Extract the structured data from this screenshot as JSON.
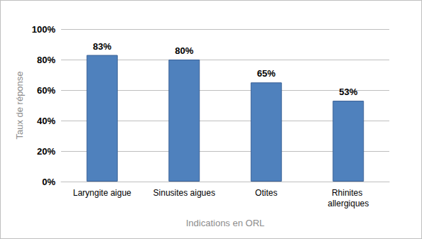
{
  "chart_data": {
    "type": "bar",
    "categories": [
      "Laryngite aigue",
      "Sinusites aigues",
      "Otites",
      "Rhinites allergiques"
    ],
    "values": [
      83,
      80,
      65,
      53
    ],
    "value_labels": [
      "83%",
      "80%",
      "65%",
      "53%"
    ],
    "data_labels": true,
    "color": "#4f81bd",
    "x_label": "Indications en ORL",
    "y_label": "Taux de réponse",
    "ylim": [
      0,
      100
    ],
    "yticks": [
      {
        "value": 0,
        "label": "0%"
      },
      {
        "value": 20,
        "label": "20%"
      },
      {
        "value": 40,
        "label": "40%"
      },
      {
        "value": 60,
        "label": "60%"
      },
      {
        "value": 80,
        "label": "80%"
      },
      {
        "value": 100,
        "label": "100%"
      }
    ],
    "grid": true
  }
}
